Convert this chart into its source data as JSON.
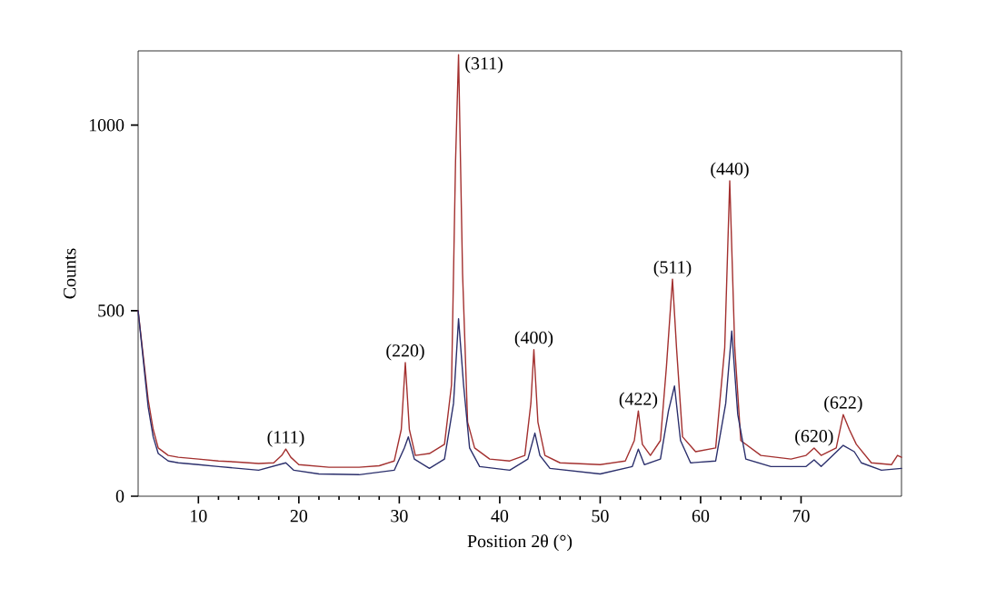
{
  "chart_data": {
    "type": "line",
    "xlabel": "Position 2θ (°)",
    "ylabel": "Counts",
    "xlim": [
      4,
      80
    ],
    "ylim": [
      0,
      1200
    ],
    "xticks": [
      10,
      20,
      30,
      40,
      50,
      60,
      70
    ],
    "yticks": [
      0,
      500,
      1000
    ],
    "marker": "none",
    "line_style": "solid",
    "series": [
      {
        "color": "#a3302f",
        "x": [
          4,
          4.5,
          5,
          5.5,
          6,
          7,
          8,
          10,
          12,
          14,
          16,
          17.5,
          18.3,
          18.7,
          19.2,
          20,
          23,
          26,
          28,
          29.5,
          30.2,
          30.6,
          31,
          31.6,
          33,
          34.5,
          35.2,
          35.6,
          35.9,
          36.3,
          36.8,
          37.5,
          39,
          41,
          42.5,
          43.1,
          43.4,
          43.8,
          44.5,
          46,
          50,
          52.5,
          53.4,
          53.8,
          54.2,
          55,
          56,
          56.6,
          57.2,
          57.6,
          58.2,
          59.5,
          61.5,
          62.4,
          62.9,
          63.4,
          64,
          66,
          69,
          70.5,
          71.3,
          72,
          73.5,
          74.2,
          74.8,
          75.5,
          77,
          79,
          79.6,
          80
        ],
        "values": [
          500,
          380,
          260,
          180,
          130,
          110,
          105,
          100,
          95,
          92,
          88,
          90,
          110,
          127,
          105,
          85,
          78,
          78,
          82,
          95,
          180,
          360,
          180,
          110,
          115,
          140,
          300,
          900,
          1190,
          600,
          200,
          130,
          100,
          95,
          110,
          250,
          395,
          200,
          110,
          90,
          85,
          95,
          150,
          230,
          140,
          110,
          150,
          350,
          585,
          400,
          160,
          120,
          130,
          400,
          850,
          400,
          150,
          110,
          100,
          110,
          130,
          110,
          130,
          220,
          180,
          140,
          90,
          85,
          110,
          105
        ]
      },
      {
        "color": "#2b2f6c",
        "x": [
          4,
          4.5,
          5,
          5.5,
          6,
          7,
          8,
          10,
          12,
          14,
          16,
          18.7,
          19.5,
          22,
          26,
          29.5,
          30.5,
          30.9,
          31.5,
          33,
          34.5,
          35.4,
          35.9,
          36.4,
          37,
          38,
          41,
          42.8,
          43.5,
          44,
          45,
          50,
          53.2,
          53.8,
          54.4,
          56,
          56.8,
          57.4,
          58,
          59,
          61.5,
          62.5,
          63.1,
          63.7,
          64.5,
          67,
          70.5,
          71.3,
          72,
          74.2,
          75.3,
          76,
          78,
          80
        ],
        "values": [
          500,
          370,
          240,
          160,
          115,
          95,
          90,
          85,
          80,
          75,
          70,
          90,
          70,
          60,
          58,
          70,
          130,
          160,
          100,
          75,
          100,
          250,
          478,
          300,
          130,
          80,
          70,
          100,
          170,
          110,
          75,
          60,
          80,
          127,
          85,
          100,
          230,
          297,
          150,
          90,
          95,
          250,
          445,
          220,
          100,
          80,
          80,
          98,
          80,
          137,
          120,
          90,
          70,
          75
        ]
      }
    ],
    "annotations": [
      {
        "text": "(111)",
        "x": 18.7,
        "y": 127
      },
      {
        "text": "(220)",
        "x": 30.6,
        "y": 360
      },
      {
        "text": "(311)",
        "x": 35.9,
        "y": 1190
      },
      {
        "text": "(400)",
        "x": 43.4,
        "y": 395
      },
      {
        "text": "(422)",
        "x": 53.8,
        "y": 230
      },
      {
        "text": "(511)",
        "x": 57.2,
        "y": 585
      },
      {
        "text": "(440)",
        "x": 62.9,
        "y": 850
      },
      {
        "text": "(620)",
        "x": 71.3,
        "y": 130
      },
      {
        "text": "(622)",
        "x": 74.2,
        "y": 220
      }
    ]
  }
}
